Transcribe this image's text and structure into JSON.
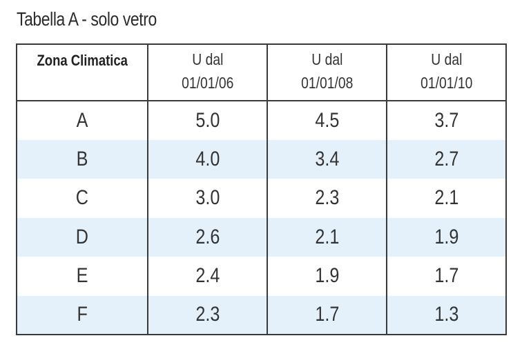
{
  "caption": "Tabella A - solo vetro",
  "table": {
    "headers": [
      {
        "line1": "Zona Climatica",
        "line2": ""
      },
      {
        "line1": "U dal",
        "line2": "01/01/06"
      },
      {
        "line1": "U dal",
        "line2": "01/01/08"
      },
      {
        "line1": "U dal",
        "line2": "01/01/10"
      }
    ],
    "rows": [
      {
        "zone": "A",
        "u2006": "5.0",
        "u2008": "4.5",
        "u2010": "3.7"
      },
      {
        "zone": "B",
        "u2006": "4.0",
        "u2008": "3.4",
        "u2010": "2.7"
      },
      {
        "zone": "C",
        "u2006": "3.0",
        "u2008": "2.3",
        "u2010": "2.1"
      },
      {
        "zone": "D",
        "u2006": "2.6",
        "u2008": "2.1",
        "u2010": "1.9"
      },
      {
        "zone": "E",
        "u2006": "2.4",
        "u2008": "1.9",
        "u2010": "1.7"
      },
      {
        "zone": "F",
        "u2006": "2.3",
        "u2008": "1.7",
        "u2010": "1.3"
      }
    ]
  },
  "colors": {
    "stripe": "#e4f1fa",
    "border": "#3a3a3a",
    "text": "#333333"
  }
}
